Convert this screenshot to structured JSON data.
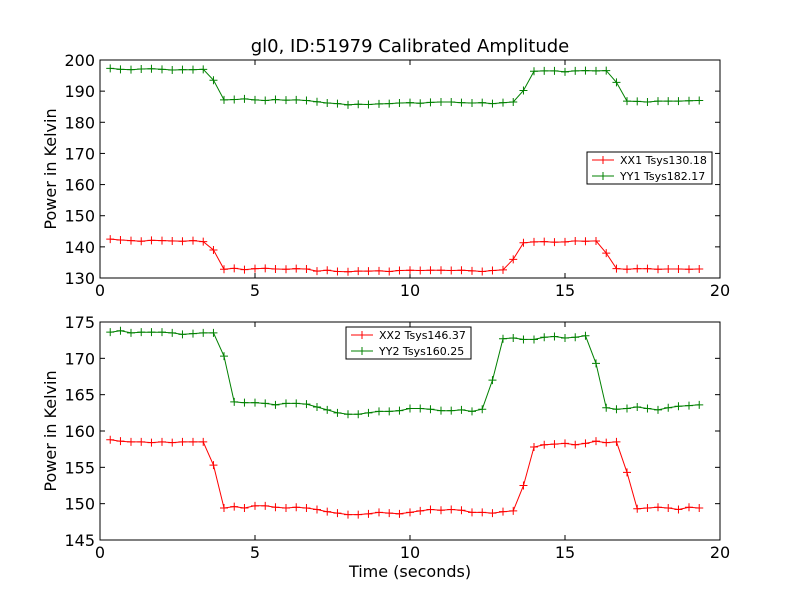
{
  "figure": {
    "title": "gl0, ID:51979 Calibrated Amplitude",
    "xlabel": "Time (seconds)"
  },
  "colors": {
    "red_series": "#ff0000",
    "green_series": "#008000",
    "axes": "#000000",
    "background": "#ffffff"
  },
  "chart_data": [
    {
      "type": "line",
      "title": "gl0, ID:51979 Calibrated Amplitude",
      "xlabel": "",
      "ylabel": "Power in Kelvin",
      "xlim": [
        0,
        20
      ],
      "ylim": [
        130,
        200
      ],
      "xticks": [
        "0",
        "5",
        "10",
        "15",
        "20"
      ],
      "yticks": [
        "130",
        "140",
        "150",
        "160",
        "170",
        "180",
        "190",
        "200"
      ],
      "grid": false,
      "legend_position": "center-right",
      "marker": "+",
      "series": [
        {
          "name": "XX1 Tsys130.18",
          "color": "#ff0000",
          "x": [
            0.33,
            0.66,
            1.0,
            1.33,
            1.66,
            2.0,
            2.33,
            2.66,
            3.0,
            3.33,
            3.66,
            4.0,
            4.33,
            4.66,
            5.0,
            5.33,
            5.66,
            6.0,
            6.33,
            6.66,
            7.0,
            7.33,
            7.66,
            8.0,
            8.33,
            8.66,
            9.0,
            9.33,
            9.66,
            10.0,
            10.33,
            10.66,
            11.0,
            11.33,
            11.66,
            12.0,
            12.33,
            12.66,
            13.0,
            13.33,
            13.66,
            14.0,
            14.33,
            14.66,
            15.0,
            15.33,
            15.66,
            16.0,
            16.33,
            16.66,
            17.0,
            17.33,
            17.66,
            18.0,
            18.33,
            18.66,
            19.0,
            19.33
          ],
          "y": [
            142.5,
            142.2,
            142.0,
            141.8,
            142.1,
            142.0,
            141.9,
            141.8,
            142.0,
            141.7,
            139.0,
            132.8,
            133.1,
            132.7,
            133.0,
            133.1,
            132.9,
            132.8,
            133.0,
            132.9,
            132.2,
            132.5,
            132.1,
            132.0,
            132.2,
            132.2,
            132.3,
            132.1,
            132.4,
            132.5,
            132.4,
            132.5,
            132.5,
            132.4,
            132.5,
            132.3,
            132.1,
            132.4,
            132.6,
            136.0,
            141.3,
            141.6,
            141.7,
            141.5,
            141.6,
            141.9,
            141.8,
            141.9,
            138.0,
            133.0,
            132.8,
            133.0,
            133.0,
            132.8,
            132.9,
            132.9,
            132.8,
            132.9
          ]
        },
        {
          "name": "YY1 Tsys182.17",
          "color": "#008000",
          "x": [
            0.33,
            0.66,
            1.0,
            1.33,
            1.66,
            2.0,
            2.33,
            2.66,
            3.0,
            3.33,
            3.66,
            4.0,
            4.33,
            4.66,
            5.0,
            5.33,
            5.66,
            6.0,
            6.33,
            6.66,
            7.0,
            7.33,
            7.66,
            8.0,
            8.33,
            8.66,
            9.0,
            9.33,
            9.66,
            10.0,
            10.33,
            10.66,
            11.0,
            11.33,
            11.66,
            12.0,
            12.33,
            12.66,
            13.0,
            13.33,
            13.66,
            14.0,
            14.33,
            14.66,
            15.0,
            15.33,
            15.66,
            16.0,
            16.33,
            16.66,
            17.0,
            17.33,
            17.66,
            18.0,
            18.33,
            18.66,
            19.0,
            19.33
          ],
          "y": [
            197.3,
            197.0,
            196.9,
            197.1,
            197.2,
            197.0,
            196.8,
            196.9,
            196.9,
            197.0,
            193.5,
            187.2,
            187.3,
            187.5,
            187.2,
            187.0,
            187.3,
            187.1,
            187.2,
            187.0,
            186.6,
            186.2,
            186.0,
            185.6,
            185.8,
            185.7,
            185.9,
            186.0,
            186.2,
            186.3,
            186.1,
            186.4,
            186.5,
            186.5,
            186.3,
            186.2,
            186.3,
            186.0,
            186.3,
            186.5,
            190.2,
            196.4,
            196.5,
            196.5,
            196.2,
            196.5,
            196.6,
            196.5,
            196.6,
            192.8,
            186.8,
            186.7,
            186.5,
            186.8,
            186.8,
            186.8,
            186.9,
            187.0
          ]
        }
      ]
    },
    {
      "type": "line",
      "title": "",
      "xlabel": "Time (seconds)",
      "ylabel": "Power in Kelvin",
      "xlim": [
        0,
        20
      ],
      "ylim": [
        145,
        175
      ],
      "xticks": [
        "0",
        "5",
        "10",
        "15",
        "20"
      ],
      "yticks": [
        "145",
        "150",
        "155",
        "160",
        "165",
        "170",
        "175"
      ],
      "grid": false,
      "legend_position": "upper-center",
      "marker": "+",
      "series": [
        {
          "name": "XX2 Tsys146.37",
          "color": "#ff0000",
          "x": [
            0.33,
            0.66,
            1.0,
            1.33,
            1.66,
            2.0,
            2.33,
            2.66,
            3.0,
            3.33,
            3.66,
            4.0,
            4.33,
            4.66,
            5.0,
            5.33,
            5.66,
            6.0,
            6.33,
            6.66,
            7.0,
            7.33,
            7.66,
            8.0,
            8.33,
            8.66,
            9.0,
            9.33,
            9.66,
            10.0,
            10.33,
            10.66,
            11.0,
            11.33,
            11.66,
            12.0,
            12.33,
            12.66,
            13.0,
            13.33,
            13.66,
            14.0,
            14.33,
            14.66,
            15.0,
            15.33,
            15.66,
            16.0,
            16.33,
            16.66,
            17.0,
            17.33,
            17.66,
            18.0,
            18.33,
            18.66,
            19.0,
            19.33
          ],
          "y": [
            158.8,
            158.6,
            158.5,
            158.5,
            158.4,
            158.5,
            158.4,
            158.5,
            158.5,
            158.5,
            155.3,
            149.4,
            149.6,
            149.4,
            149.7,
            149.7,
            149.5,
            149.4,
            149.5,
            149.4,
            149.2,
            148.9,
            148.7,
            148.5,
            148.5,
            148.6,
            148.8,
            148.7,
            148.6,
            148.8,
            149.0,
            149.2,
            149.1,
            149.2,
            149.1,
            148.8,
            148.8,
            148.7,
            148.9,
            149.0,
            152.5,
            157.8,
            158.1,
            158.2,
            158.3,
            158.1,
            158.3,
            158.6,
            158.4,
            158.5,
            154.3,
            149.3,
            149.4,
            149.5,
            149.4,
            149.2,
            149.5,
            149.4
          ]
        },
        {
          "name": "YY2 Tsys160.25",
          "color": "#008000",
          "x": [
            0.33,
            0.66,
            1.0,
            1.33,
            1.66,
            2.0,
            2.33,
            2.66,
            3.0,
            3.33,
            3.66,
            4.0,
            4.33,
            4.66,
            5.0,
            5.33,
            5.66,
            6.0,
            6.33,
            6.66,
            7.0,
            7.33,
            7.66,
            8.0,
            8.33,
            8.66,
            9.0,
            9.33,
            9.66,
            10.0,
            10.33,
            10.66,
            11.0,
            11.33,
            11.66,
            12.0,
            12.33,
            12.66,
            13.0,
            13.33,
            13.66,
            14.0,
            14.33,
            14.66,
            15.0,
            15.33,
            15.66,
            16.0,
            16.33,
            16.66,
            17.0,
            17.33,
            17.66,
            18.0,
            18.33,
            18.66,
            19.0,
            19.33
          ],
          "y": [
            173.6,
            173.8,
            173.5,
            173.6,
            173.6,
            173.6,
            173.5,
            173.3,
            173.4,
            173.5,
            173.5,
            170.3,
            164.0,
            163.9,
            163.9,
            163.8,
            163.6,
            163.8,
            163.8,
            163.7,
            163.3,
            162.9,
            162.5,
            162.3,
            162.3,
            162.5,
            162.7,
            162.7,
            162.8,
            163.1,
            163.1,
            163.0,
            162.8,
            162.8,
            162.9,
            162.7,
            163.0,
            167.0,
            172.7,
            172.8,
            172.6,
            172.6,
            172.9,
            173.0,
            172.8,
            172.9,
            173.1,
            169.3,
            163.2,
            163.0,
            163.1,
            163.3,
            163.1,
            162.9,
            163.2,
            163.4,
            163.5,
            163.6
          ]
        }
      ]
    }
  ]
}
